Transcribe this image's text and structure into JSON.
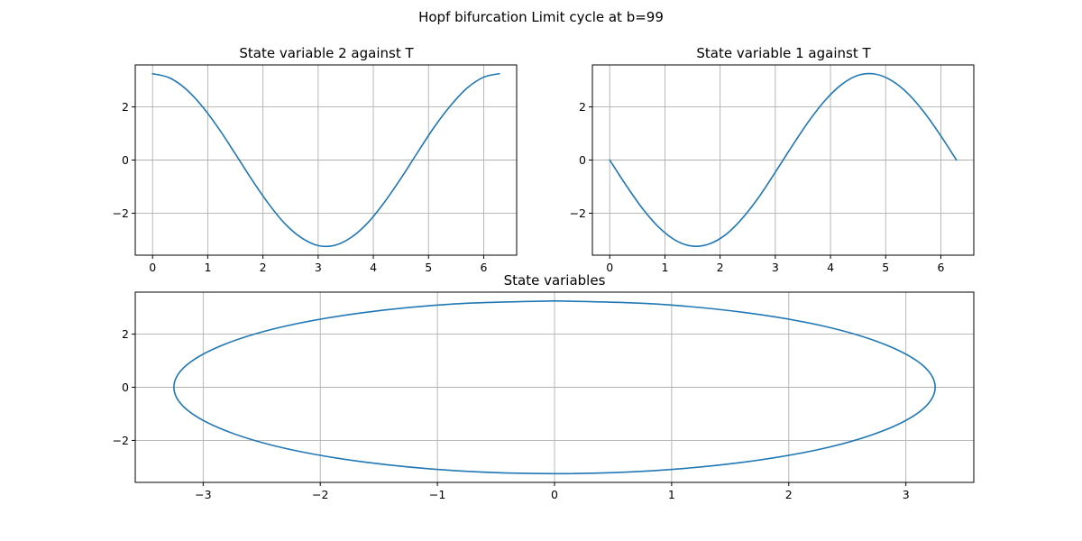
{
  "figure": {
    "suptitle": "Hopf bifurcation Limit cycle at b=99"
  },
  "colors": {
    "line": "#1f77b4",
    "grid": "#b0b0b0"
  },
  "chart_data": [
    {
      "id": "ax1",
      "type": "line",
      "title": "State variable 2 against T",
      "xlabel": "",
      "ylabel": "",
      "xlim": [
        -0.314,
        6.597
      ],
      "ylim": [
        -3.58,
        3.58
      ],
      "xticks": [
        0,
        1,
        2,
        3,
        4,
        5,
        6
      ],
      "xtick_labels": [
        "0",
        "1",
        "2",
        "3",
        "4",
        "5",
        "6"
      ],
      "yticks": [
        -2,
        0,
        2
      ],
      "ytick_labels": [
        "−2",
        "0",
        "2"
      ],
      "grid": true,
      "series": [
        {
          "x": [
            0,
            0.3,
            0.6,
            0.9,
            1.2,
            1.5,
            1.8,
            2.1,
            2.4,
            2.7,
            3.0,
            3.3,
            3.6,
            3.9,
            4.2,
            4.5,
            4.8,
            5.1,
            5.4,
            5.7,
            6.0,
            6.283
          ],
          "y": [
            3.25,
            3.1,
            2.68,
            2.02,
            1.18,
            0.23,
            -0.74,
            -1.64,
            -2.4,
            -2.93,
            -3.22,
            -3.21,
            -2.91,
            -2.36,
            -1.59,
            -0.69,
            0.28,
            1.23,
            2.05,
            2.71,
            3.12,
            3.25
          ]
        }
      ]
    },
    {
      "id": "ax2",
      "type": "line",
      "title": "State variable 1 against T",
      "xlabel": "",
      "ylabel": "",
      "xlim": [
        -0.314,
        6.597
      ],
      "ylim": [
        -3.58,
        3.58
      ],
      "xticks": [
        0,
        1,
        2,
        3,
        4,
        5,
        6
      ],
      "xtick_labels": [
        "0",
        "1",
        "2",
        "3",
        "4",
        "5",
        "6"
      ],
      "yticks": [
        -2,
        0,
        2
      ],
      "ytick_labels": [
        "−2",
        "0",
        "2"
      ],
      "grid": true,
      "series": [
        {
          "x": [
            0,
            0.3,
            0.6,
            0.9,
            1.2,
            1.5,
            1.8,
            2.1,
            2.4,
            2.7,
            3.0,
            3.3,
            3.6,
            3.9,
            4.2,
            4.5,
            4.8,
            5.1,
            5.4,
            5.7,
            6.0,
            6.283
          ],
          "y": [
            0.0,
            -0.96,
            -1.84,
            -2.55,
            -3.03,
            -3.24,
            -3.16,
            -2.81,
            -2.2,
            -1.4,
            -0.46,
            0.51,
            1.44,
            2.24,
            2.84,
            3.19,
            3.24,
            3.0,
            2.51,
            1.79,
            0.91,
            0.0
          ]
        }
      ]
    },
    {
      "id": "ax3",
      "type": "line",
      "title": "State variables",
      "xlabel": "",
      "ylabel": "",
      "xlim": [
        -3.58,
        3.58
      ],
      "ylim": [
        -3.58,
        3.58
      ],
      "xticks": [
        -3,
        -2,
        -1,
        0,
        1,
        2,
        3
      ],
      "xtick_labels": [
        "−3",
        "−2",
        "−1",
        "0",
        "1",
        "2",
        "3"
      ],
      "yticks": [
        -2,
        0,
        2
      ],
      "ytick_labels": [
        "−2",
        "0",
        "2"
      ],
      "grid": true,
      "series": [
        {
          "x": [
            0.0,
            -0.84,
            -1.63,
            -2.3,
            -2.81,
            -3.14,
            -3.25,
            -3.14,
            -2.81,
            -2.3,
            -1.63,
            -0.84,
            0.0,
            0.84,
            1.63,
            2.3,
            2.81,
            3.14,
            3.25,
            3.14,
            2.81,
            2.3,
            1.63,
            0.84,
            0.0
          ],
          "y": [
            3.25,
            3.14,
            2.81,
            2.3,
            1.63,
            0.84,
            0.0,
            -0.84,
            -1.63,
            -2.3,
            -2.81,
            -3.14,
            -3.25,
            -3.14,
            -2.81,
            -2.3,
            -1.63,
            -0.84,
            0.0,
            0.84,
            1.63,
            2.3,
            2.81,
            3.14,
            3.25
          ]
        }
      ]
    }
  ]
}
